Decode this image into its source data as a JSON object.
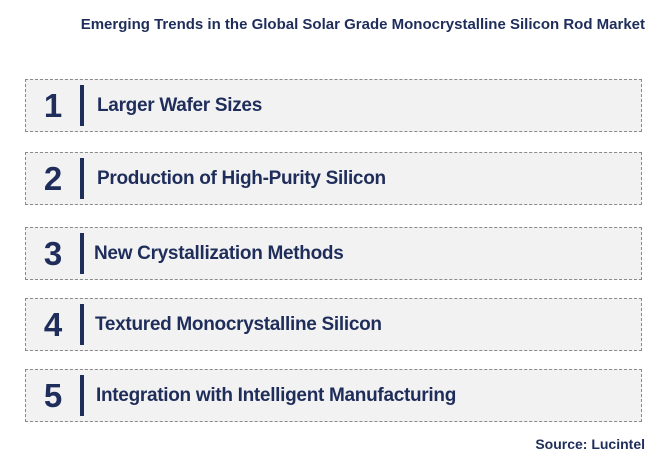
{
  "title": "Emerging Trends in the Global Solar Grade Monocrystalline Silicon Rod Market",
  "trends": [
    {
      "number": "1",
      "label": "Larger Wafer Sizes"
    },
    {
      "number": "2",
      "label": "Production of High-Purity Silicon"
    },
    {
      "number": "3",
      "label": "New Crystallization Methods"
    },
    {
      "number": "4",
      "label": "Textured Monocrystalline Silicon"
    },
    {
      "number": "5",
      "label": "Integration with Intelligent Manufacturing"
    }
  ],
  "source": "Source: Lucintel",
  "colors": {
    "text": "#1f2d5a",
    "box_fill": "#f2f2f2",
    "box_border": "#8a8a8a"
  }
}
